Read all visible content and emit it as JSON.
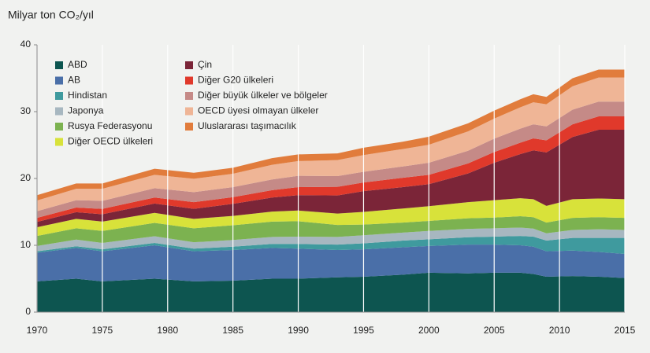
{
  "chart_data": {
    "type": "stacked-area",
    "title": "Milyar ton CO₂/yıl",
    "x": [
      1970,
      1973,
      1975,
      1979,
      1982,
      1985,
      1988,
      1990,
      1993,
      1995,
      1998,
      2000,
      2003,
      2005,
      2007,
      2008,
      2009,
      2011,
      2013,
      2015
    ],
    "xlim": [
      1970,
      2015
    ],
    "xticks": [
      1970,
      1975,
      1980,
      1985,
      1990,
      1995,
      2000,
      2005,
      2010,
      2015
    ],
    "ylim": [
      0,
      40
    ],
    "yticks": [
      0,
      10,
      20,
      30,
      40
    ],
    "grid": true,
    "series": [
      {
        "name": "ABD",
        "color": "#0d5550",
        "values": [
          4.6,
          5.0,
          4.6,
          5.0,
          4.6,
          4.7,
          5.0,
          5.0,
          5.2,
          5.3,
          5.6,
          5.9,
          5.8,
          5.9,
          5.9,
          5.7,
          5.3,
          5.4,
          5.3,
          5.1
        ]
      },
      {
        "name": "AB",
        "color": "#4a6fa8",
        "values": [
          4.3,
          4.6,
          4.5,
          5.0,
          4.5,
          4.6,
          4.6,
          4.5,
          4.1,
          4.1,
          4.1,
          4.0,
          4.3,
          4.2,
          4.1,
          4.1,
          3.8,
          3.8,
          3.7,
          3.6
        ]
      },
      {
        "name": "Hindistan",
        "color": "#3f9a9e",
        "values": [
          0.2,
          0.25,
          0.3,
          0.35,
          0.4,
          0.5,
          0.6,
          0.7,
          0.8,
          0.9,
          1.0,
          1.0,
          1.1,
          1.2,
          1.4,
          1.5,
          1.6,
          1.9,
          2.1,
          2.4
        ]
      },
      {
        "name": "Japonya",
        "color": "#a7b7c0",
        "values": [
          0.8,
          1.0,
          0.95,
          1.0,
          0.95,
          1.0,
          1.05,
          1.1,
          1.15,
          1.2,
          1.2,
          1.25,
          1.25,
          1.25,
          1.25,
          1.2,
          1.1,
          1.2,
          1.3,
          1.2
        ]
      },
      {
        "name": "Rusya Federasyonu",
        "color": "#7cb250",
        "values": [
          1.5,
          1.7,
          1.8,
          2.0,
          2.1,
          2.2,
          2.3,
          2.3,
          1.8,
          1.6,
          1.5,
          1.5,
          1.6,
          1.6,
          1.7,
          1.7,
          1.6,
          1.8,
          1.8,
          1.8
        ]
      },
      {
        "name": "Diğer OECD ülkeleri",
        "color": "#d8e23a",
        "values": [
          1.3,
          1.4,
          1.4,
          1.5,
          1.4,
          1.4,
          1.5,
          1.6,
          1.7,
          1.9,
          2.1,
          2.2,
          2.4,
          2.6,
          2.7,
          2.7,
          2.5,
          2.8,
          2.8,
          2.8
        ]
      },
      {
        "name": "Çin",
        "color": "#7b2538",
        "values": [
          0.8,
          1.0,
          1.1,
          1.4,
          1.5,
          1.8,
          2.1,
          2.3,
          2.7,
          3.1,
          3.2,
          3.3,
          4.3,
          5.6,
          6.6,
          7.3,
          8.0,
          9.3,
          10.3,
          10.4
        ]
      },
      {
        "name": "Diğer G20 ülkeleri",
        "color": "#e0392b",
        "values": [
          0.6,
          0.7,
          0.8,
          0.9,
          1.0,
          1.0,
          1.1,
          1.2,
          1.3,
          1.3,
          1.4,
          1.4,
          1.5,
          1.6,
          1.7,
          1.8,
          1.8,
          1.9,
          2.0,
          2.0
        ]
      },
      {
        "name": "Diğer büyük ülkeler ve bölgeler",
        "color": "#c58a87",
        "values": [
          1.0,
          1.1,
          1.2,
          1.4,
          1.5,
          1.5,
          1.6,
          1.7,
          1.6,
          1.6,
          1.7,
          1.8,
          1.9,
          2.0,
          2.1,
          2.1,
          2.1,
          2.2,
          2.2,
          2.2
        ]
      },
      {
        "name": "OECD üyesi olmayan ülkeler",
        "color": "#efb596",
        "values": [
          1.6,
          1.7,
          1.8,
          2.0,
          2.0,
          2.0,
          2.2,
          2.2,
          2.4,
          2.5,
          2.6,
          2.7,
          2.9,
          3.0,
          3.2,
          3.3,
          3.3,
          3.5,
          3.6,
          3.6
        ]
      },
      {
        "name": "Uluslararası taşımacılık",
        "color": "#e17c3c",
        "values": [
          0.8,
          0.8,
          0.8,
          0.9,
          0.9,
          0.9,
          1.0,
          1.0,
          1.0,
          1.1,
          1.1,
          1.2,
          1.2,
          1.2,
          1.2,
          1.2,
          1.1,
          1.2,
          1.2,
          1.2
        ]
      }
    ]
  }
}
